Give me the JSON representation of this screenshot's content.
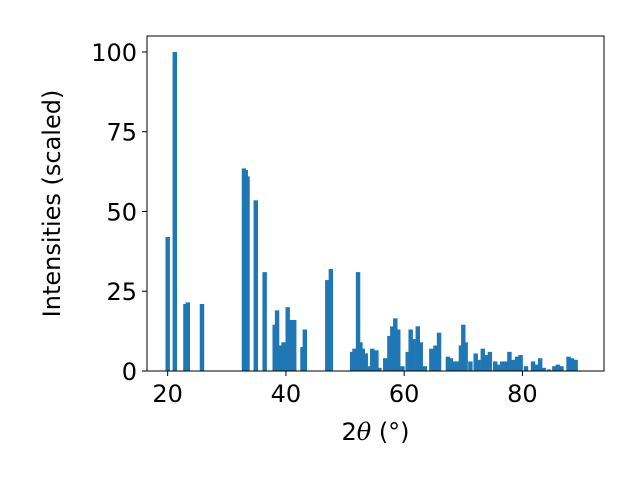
{
  "chart_data": {
    "type": "bar",
    "xlabel": {
      "prefix": "2",
      "symbol": "θ",
      "suffix": " (°)"
    },
    "ylabel": "Intensities (scaled)",
    "xlim": [
      16.5,
      93.8
    ],
    "ylim": [
      0,
      105
    ],
    "xticks": [
      20,
      40,
      60,
      80
    ],
    "yticks": [
      0,
      25,
      50,
      75,
      100
    ],
    "bar_width": 0.75,
    "color": "#1f77b4",
    "x": [
      20.0,
      21.2,
      23.0,
      23.4,
      25.8,
      32.9,
      33.2,
      33.5,
      34.9,
      36.4,
      38.1,
      38.5,
      39.2,
      39.6,
      40.3,
      40.8,
      41.4,
      42.8,
      43.2,
      47.0,
      47.6,
      51.2,
      51.6,
      52.2,
      52.6,
      53.0,
      53.5,
      54.1,
      54.6,
      55.3,
      55.8,
      56.8,
      57.5,
      58.0,
      58.5,
      59.0,
      59.7,
      60.6,
      61.1,
      61.6,
      62.3,
      62.8,
      63.5,
      64.6,
      65.3,
      65.9,
      67.4,
      67.9,
      68.4,
      69.0,
      69.6,
      70.0,
      70.4,
      71.2,
      72.1,
      72.6,
      73.3,
      73.9,
      74.5,
      75.4,
      76.0,
      76.6,
      77.2,
      77.8,
      78.5,
      79.1,
      79.7,
      80.6,
      81.8,
      82.3,
      83.0,
      83.6,
      84.5,
      85.4,
      86.0,
      86.6,
      87.8,
      88.4,
      89.0
    ],
    "values": [
      42,
      100,
      21,
      21.5,
      21,
      63.5,
      63,
      61,
      53.5,
      31,
      14.5,
      19,
      8,
      9,
      20,
      16,
      16,
      7.5,
      13,
      28.5,
      32,
      6,
      7,
      31,
      9,
      7,
      5.5,
      1.5,
      7,
      6.5,
      1,
      4,
      11,
      14,
      16.5,
      13,
      1.5,
      6,
      13,
      10,
      14,
      9,
      1.5,
      7,
      8,
      12,
      4.5,
      4,
      3,
      3,
      8,
      14.5,
      9,
      3,
      5.5,
      3.5,
      7,
      5,
      6,
      3,
      2,
      3,
      3,
      6,
      3.5,
      4.5,
      5,
      1.5,
      3,
      2,
      4,
      1,
      0.5,
      1.5,
      2,
      1.5,
      4.5,
      4,
      3.5
    ]
  }
}
